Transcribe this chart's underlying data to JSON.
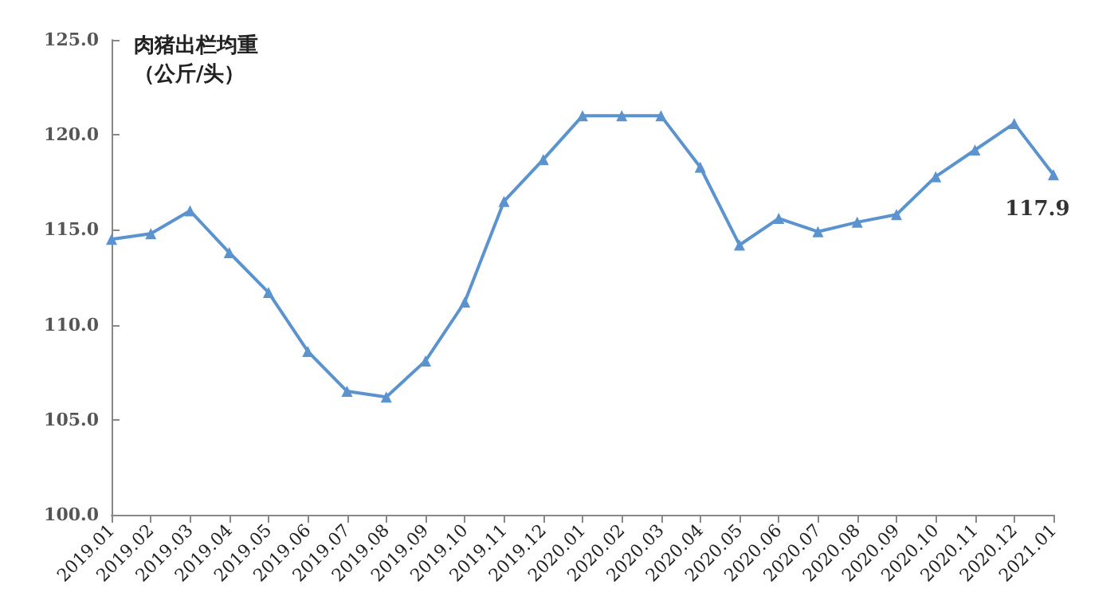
{
  "chart_data": {
    "type": "line",
    "ylabel": "肉猪出栏均重（公斤/头）",
    "categories": [
      "2019.01",
      "2019.02",
      "2019.03",
      "2019.04",
      "2019.05",
      "2019.06",
      "2019.07",
      "2019.08",
      "2019.09",
      "2019.10",
      "2019.11",
      "2019.12",
      "2020.01",
      "2020.02",
      "2020.03",
      "2020.04",
      "2020.05",
      "2020.06",
      "2020.07",
      "2020.08",
      "2020.09",
      "2020.10",
      "2020.11",
      "2020.12",
      "2021.01"
    ],
    "series": [
      {
        "color": "#5b93cf",
        "values": [
          114.5,
          114.8,
          116.0,
          113.8,
          111.7,
          108.6,
          106.5,
          106.2,
          108.1,
          111.2,
          116.5,
          118.7,
          121.0,
          121.0,
          121.0,
          118.3,
          114.2,
          115.6,
          114.9,
          115.4,
          115.8,
          117.8,
          119.2,
          120.6,
          117.9
        ],
        "value_labels": [
          null,
          null,
          null,
          null,
          null,
          null,
          null,
          null,
          null,
          null,
          null,
          null,
          null,
          null,
          null,
          null,
          null,
          null,
          null,
          null,
          null,
          null,
          null,
          null,
          "117.9"
        ]
      }
    ],
    "ylim": [
      100,
      125
    ],
    "yticks": [
      {
        "value": 100,
        "label": "100.0"
      },
      {
        "value": 105,
        "label": "105.0"
      },
      {
        "value": 110,
        "label": "110.0"
      },
      {
        "value": 115,
        "label": "115.0"
      },
      {
        "value": 120,
        "label": "120.0"
      },
      {
        "value": 125,
        "label": "125.0"
      }
    ],
    "grid": false,
    "marker": "triangle",
    "line_style": "solid"
  }
}
